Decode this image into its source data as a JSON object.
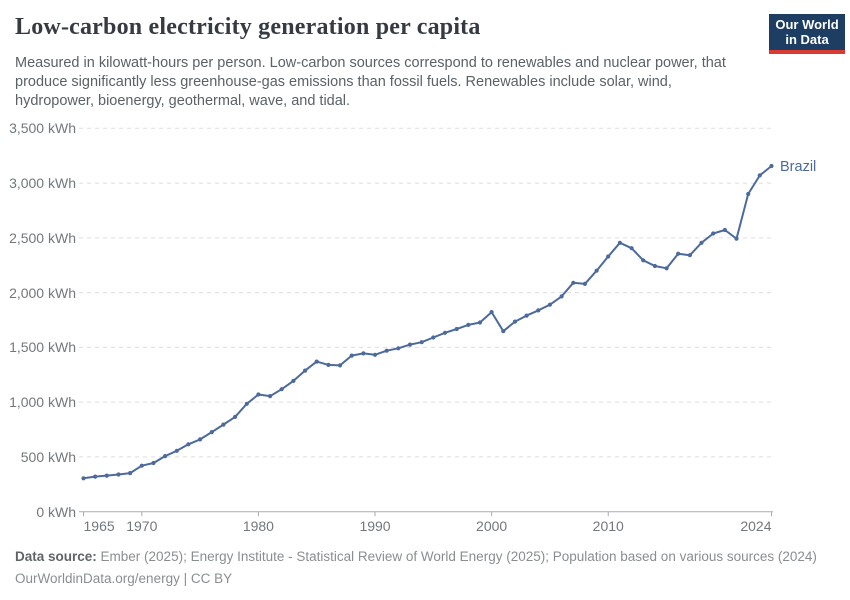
{
  "header": {
    "title": "Low-carbon electricity generation per capita",
    "subtitle_lines": [
      "Measured in kilowatt-hours per person. Low-carbon sources correspond to renewables and nuclear power, that",
      "produce significantly less greenhouse-gas emissions than fossil fuels. Renewables include solar, wind,",
      "hydropower, bioenergy, geothermal, wave, and tidal."
    ],
    "logo": {
      "line1": "Our World",
      "line2": "in Data",
      "bg_color": "#1d3d63",
      "stripe_color": "#d93b32"
    }
  },
  "chart_data": {
    "type": "line",
    "title": "Low-carbon electricity generation per capita",
    "unit": "kWh",
    "x_range": [
      1965,
      2024
    ],
    "ylim": [
      0,
      3500
    ],
    "grid": "horizontal-dashed",
    "grid_color": "#dcdddf",
    "axis_color": "#a8abb0",
    "end_label": "Brazil",
    "x": [
      1965,
      1966,
      1967,
      1968,
      1969,
      1970,
      1971,
      1972,
      1973,
      1974,
      1975,
      1976,
      1977,
      1978,
      1979,
      1980,
      1981,
      1982,
      1983,
      1984,
      1985,
      1986,
      1987,
      1988,
      1989,
      1990,
      1991,
      1992,
      1993,
      1994,
      1995,
      1996,
      1997,
      1998,
      1999,
      2000,
      2001,
      2002,
      2003,
      2004,
      2005,
      2006,
      2007,
      2008,
      2009,
      2010,
      2011,
      2012,
      2013,
      2014,
      2015,
      2016,
      2017,
      2018,
      2019,
      2020,
      2021,
      2022,
      2023,
      2024
    ],
    "series": [
      {
        "name": "Brazil",
        "color": "#4C6A9C",
        "values": [
          305,
          320,
          330,
          340,
          352,
          420,
          445,
          508,
          556,
          615,
          660,
          727,
          795,
          865,
          985,
          1070,
          1055,
          1118,
          1194,
          1288,
          1370,
          1340,
          1336,
          1425,
          1445,
          1432,
          1470,
          1492,
          1525,
          1547,
          1590,
          1633,
          1668,
          1705,
          1727,
          1822,
          1648,
          1735,
          1790,
          1838,
          1890,
          1965,
          2090,
          2080,
          2200,
          2330,
          2455,
          2405,
          2295,
          2243,
          2222,
          2355,
          2342,
          2455,
          2540,
          2572,
          2492,
          2900,
          3070,
          3156
        ]
      }
    ],
    "yticks": [
      {
        "value": 0,
        "label": "0 kWh"
      },
      {
        "value": 500,
        "label": "500 kWh"
      },
      {
        "value": 1000,
        "label": "1,000 kWh"
      },
      {
        "value": 1500,
        "label": "1,500 kWh"
      },
      {
        "value": 2000,
        "label": "2,000 kWh"
      },
      {
        "value": 2500,
        "label": "2,500 kWh"
      },
      {
        "value": 3000,
        "label": "3,000 kWh"
      },
      {
        "value": 3500,
        "label": "3,500 kWh"
      }
    ],
    "xticks": [
      {
        "year": 1965,
        "label": "1965",
        "align": "start"
      },
      {
        "year": 1970,
        "label": "1970",
        "align": "middle"
      },
      {
        "year": 1980,
        "label": "1980",
        "align": "middle"
      },
      {
        "year": 1990,
        "label": "1990",
        "align": "middle"
      },
      {
        "year": 2000,
        "label": "2000",
        "align": "middle"
      },
      {
        "year": 2010,
        "label": "2010",
        "align": "middle"
      },
      {
        "year": 2024,
        "label": "2024",
        "align": "end"
      }
    ]
  },
  "footer": {
    "source_label": "Data source:",
    "source_text": " Ember (2025); Energy Institute - Statistical Review of World Energy (2025); Population based on various sources (2024)",
    "note": "OurWorldinData.org/energy | CC BY"
  }
}
